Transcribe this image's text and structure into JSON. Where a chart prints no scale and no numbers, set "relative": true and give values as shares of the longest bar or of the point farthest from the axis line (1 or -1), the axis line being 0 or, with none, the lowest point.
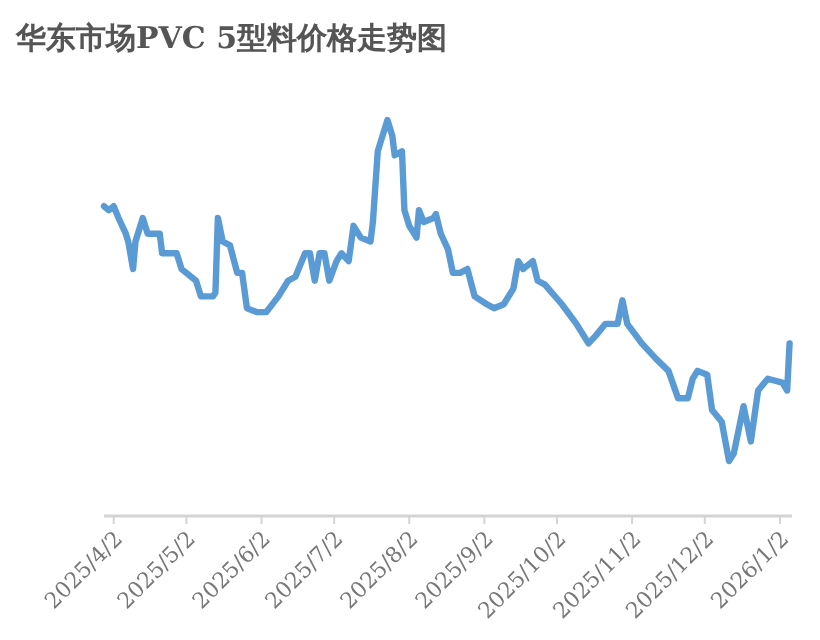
{
  "chart_data": {
    "type": "line",
    "title": "华东市场PVC 5型料价格走势图",
    "relative": true,
    "x": [
      "2025-03-29",
      "2025-03-31",
      "2025-04-02",
      "2025-04-04",
      "2025-04-07",
      "2025-04-08",
      "2025-04-10",
      "2025-04-11",
      "2025-04-14",
      "2025-04-16",
      "2025-04-21",
      "2025-04-22",
      "2025-04-28",
      "2025-04-30",
      "2025-05-06",
      "2025-05-08",
      "2025-05-13",
      "2025-05-14",
      "2025-05-15",
      "2025-05-17",
      "2025-05-20",
      "2025-05-23",
      "2025-05-25",
      "2025-05-27",
      "2025-05-31",
      "2025-06-04",
      "2025-06-09",
      "2025-06-13",
      "2025-06-16",
      "2025-06-20",
      "2025-06-22",
      "2025-06-24",
      "2025-06-26",
      "2025-06-28",
      "2025-06-30",
      "2025-07-03",
      "2025-07-05",
      "2025-07-08",
      "2025-07-10",
      "2025-07-13",
      "2025-07-17",
      "2025-07-18",
      "2025-07-20",
      "2025-07-22",
      "2025-07-24",
      "2025-07-26",
      "2025-07-27",
      "2025-07-30",
      "2025-07-31",
      "2025-08-02",
      "2025-08-05",
      "2025-08-06",
      "2025-08-08",
      "2025-08-12",
      "2025-08-13",
      "2025-08-15",
      "2025-08-18",
      "2025-08-20",
      "2025-08-23",
      "2025-08-26",
      "2025-08-29",
      "2025-09-03",
      "2025-09-06",
      "2025-09-10",
      "2025-09-14",
      "2025-09-16",
      "2025-09-18",
      "2025-09-22",
      "2025-09-24",
      "2025-09-27",
      "2025-10-04",
      "2025-10-10",
      "2025-10-15",
      "2025-10-18",
      "2025-10-22",
      "2025-10-27",
      "2025-10-29",
      "2025-10-31",
      "2025-11-06",
      "2025-11-12",
      "2025-11-17",
      "2025-11-21",
      "2025-11-25",
      "2025-11-27",
      "2025-11-29",
      "2025-12-03",
      "2025-12-05",
      "2025-12-09",
      "2025-12-12",
      "2025-12-14",
      "2025-12-18",
      "2025-12-21",
      "2025-12-24",
      "2025-12-28",
      "2026-01-03",
      "2026-01-05",
      "2026-01-06"
    ],
    "series": [
      {
        "color": "#5b9bd5",
        "values": [
          0.78,
          0.77,
          0.78,
          0.75,
          0.71,
          0.69,
          0.62,
          0.69,
          0.75,
          0.71,
          0.71,
          0.66,
          0.66,
          0.62,
          0.59,
          0.55,
          0.55,
          0.56,
          0.75,
          0.69,
          0.68,
          0.61,
          0.61,
          0.52,
          0.51,
          0.51,
          0.55,
          0.59,
          0.6,
          0.66,
          0.66,
          0.59,
          0.66,
          0.66,
          0.59,
          0.64,
          0.66,
          0.64,
          0.73,
          0.7,
          0.69,
          0.74,
          0.92,
          0.96,
          1,
          0.96,
          0.91,
          0.92,
          0.77,
          0.73,
          0.7,
          0.77,
          0.74,
          0.75,
          0.76,
          0.71,
          0.67,
          0.61,
          0.61,
          0.62,
          0.55,
          0.53,
          0.52,
          0.53,
          0.57,
          0.64,
          0.62,
          0.64,
          0.59,
          0.58,
          0.53,
          0.48,
          0.43,
          0.45,
          0.48,
          0.48,
          0.54,
          0.48,
          0.43,
          0.39,
          0.36,
          0.29,
          0.29,
          0.34,
          0.36,
          0.35,
          0.26,
          0.23,
          0.13,
          0.15,
          0.27,
          0.18,
          0.31,
          0.34,
          0.33,
          0.31,
          0.43
        ]
      }
    ],
    "xlim": [
      "2025-03-29",
      "2026-01-07"
    ],
    "xticks": [
      {
        "value": "2025-04-02",
        "label": "2025/4/2"
      },
      {
        "value": "2025-05-02",
        "label": "2025/5/2"
      },
      {
        "value": "2025-06-02",
        "label": "2025/6/2"
      },
      {
        "value": "2025-07-02",
        "label": "2025/7/2"
      },
      {
        "value": "2025-08-02",
        "label": "2025/8/2"
      },
      {
        "value": "2025-09-02",
        "label": "2025/9/2"
      },
      {
        "value": "2025-10-02",
        "label": "2025/10/2"
      },
      {
        "value": "2025-11-02",
        "label": "2025/11/2"
      },
      {
        "value": "2025-12-02",
        "label": "2025/12/2"
      },
      {
        "value": "2026-01-02",
        "label": "2026/1/2"
      }
    ],
    "line_style": "solid"
  }
}
